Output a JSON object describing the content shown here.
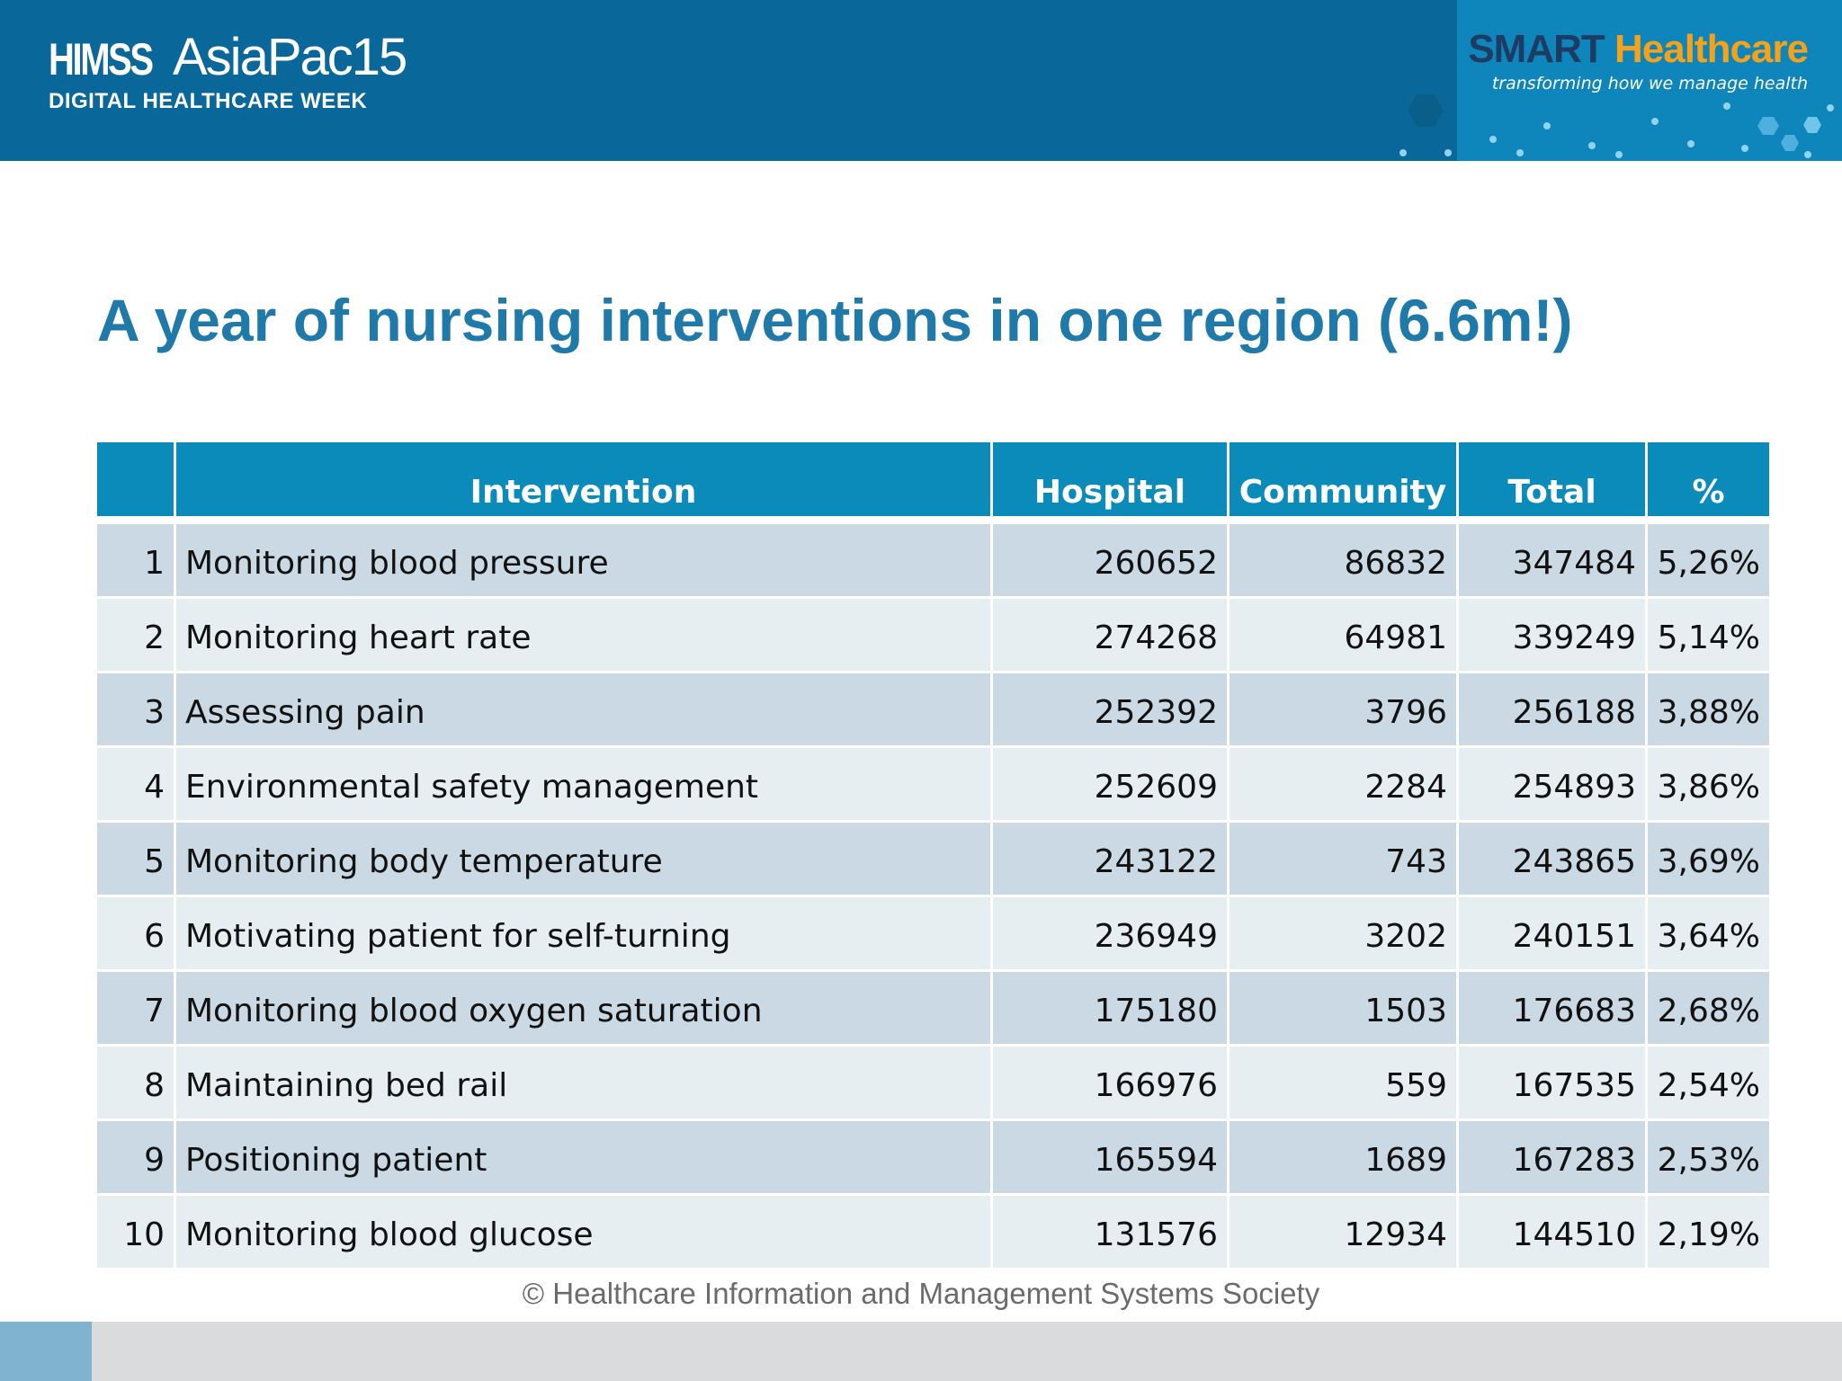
{
  "header": {
    "event_brand": "HIMSS",
    "event_name": "AsiaPac15",
    "event_subtitle": "DIGITAL HEALTHCARE WEEK",
    "partner_brand_1": "SMART",
    "partner_brand_2": "Healthcare",
    "partner_tagline": "transforming how we manage health"
  },
  "title": "A year of nursing interventions in one region (6.6m!)",
  "table": {
    "headers": [
      "",
      "Intervention",
      "Hospital",
      "Community",
      "Total",
      "%"
    ],
    "rows": [
      [
        "1",
        "Monitoring blood pressure",
        "260652",
        "86832",
        "347484",
        "5,26%"
      ],
      [
        "2",
        "Monitoring heart rate",
        "274268",
        "64981",
        "339249",
        "5,14%"
      ],
      [
        "3",
        "Assessing pain",
        "252392",
        "3796",
        "256188",
        "3,88%"
      ],
      [
        "4",
        "Environmental safety management",
        "252609",
        "2284",
        "254893",
        "3,86%"
      ],
      [
        "5",
        "Monitoring body temperature",
        "243122",
        "743",
        "243865",
        "3,69%"
      ],
      [
        "6",
        "Motivating patient for self-turning",
        "236949",
        "3202",
        "240151",
        "3,64%"
      ],
      [
        "7",
        "Monitoring blood oxygen saturation",
        "175180",
        "1503",
        "176683",
        "2,68%"
      ],
      [
        "8",
        "Maintaining bed rail",
        "166976",
        "559",
        "167535",
        "2,54%"
      ],
      [
        "9",
        "Positioning patient",
        "165594",
        "1689",
        "167283",
        "2,53%"
      ],
      [
        "10",
        "Monitoring blood glucose",
        "131576",
        "12934",
        "144510",
        "2,19%"
      ]
    ]
  },
  "footer": {
    "copyright": "© Healthcare Information and Management Systems Society"
  },
  "colors": {
    "header_bg": "#09679a",
    "title": "#1f7aa9",
    "table_header": "#0b8bb9",
    "row_dark": "#cad9e3",
    "row_light": "#e7eef2",
    "accent_orange": "#f5a21b"
  }
}
